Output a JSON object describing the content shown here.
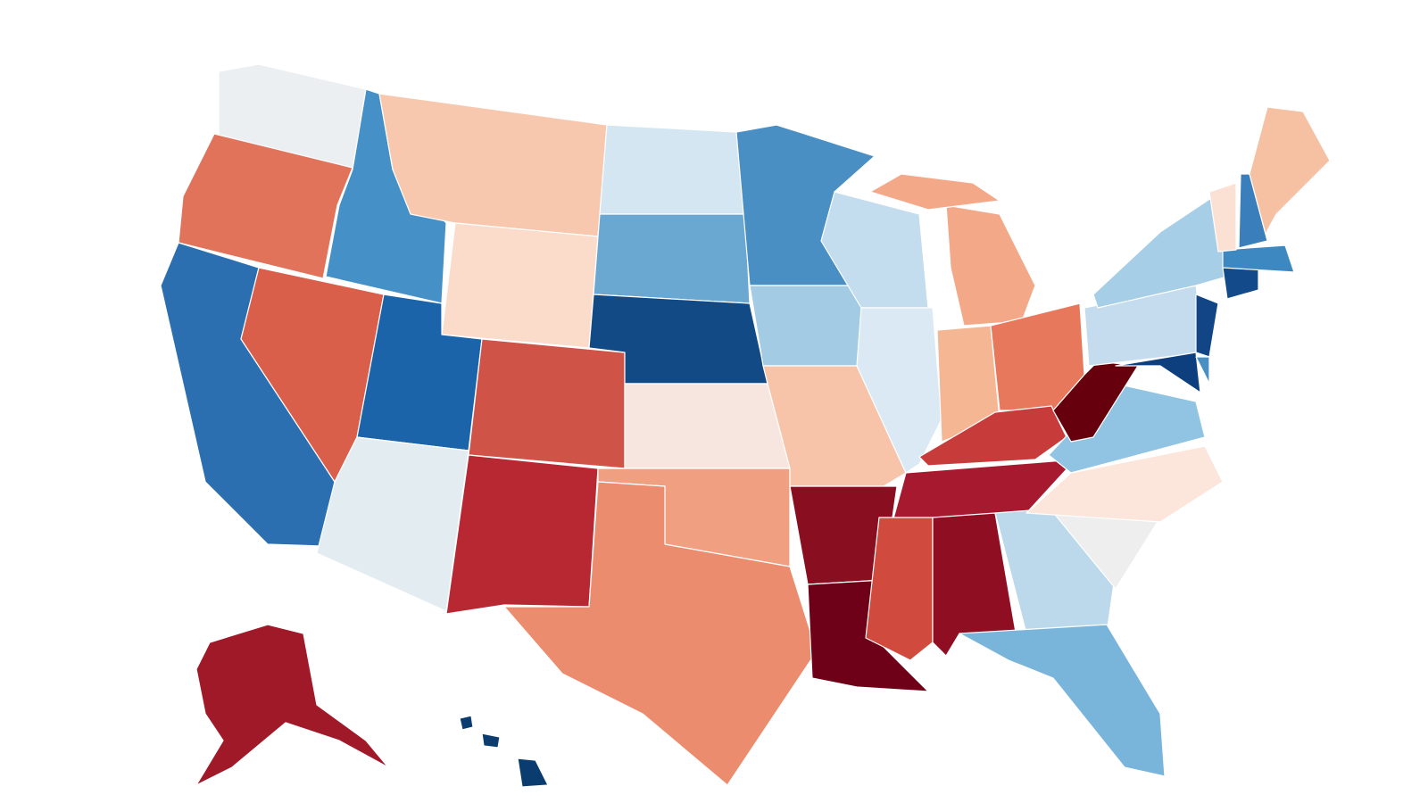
{
  "map": {
    "fills": [
      "#eceff2",
      "#e0735a",
      "#2c6fb0",
      "#4590c6",
      "#d95f4a",
      "#f8c8ae",
      "#fbdccb",
      "#1b64aa",
      "#e3ecf0",
      "#d05347",
      "#b82832",
      "#d3e6f1",
      "#6aa8d2",
      "#114a85",
      "#f6e6df",
      "#f0a080",
      "#ec8c6e",
      "#4a8fc4",
      "#a3cce4",
      "#f7c4aa",
      "#880e20",
      "#6e0018",
      "#c3dcee",
      "#dae9f4",
      "#f3a888",
      "#f3a888",
      "#f5b793",
      "#e7785c",
      "#c73c3a",
      "#a6192e",
      "#d04a3e",
      "#8f0e22",
      "#bcd9ec",
      "#79b4da",
      "#eeeeee",
      "#fce5da",
      "#90c4e2",
      "#67000d",
      "#c4dcee",
      "#a6cee6",
      "#0d3f7e",
      "#114585",
      "#4a8fc4",
      "#134b8a",
      "#3d88c0",
      "#fbe0d4",
      "#3a7fbc",
      "#f6c0a2",
      "#a01928",
      "#0a3c70",
      "#0a3c70",
      "#0a3c70"
    ]
  }
}
